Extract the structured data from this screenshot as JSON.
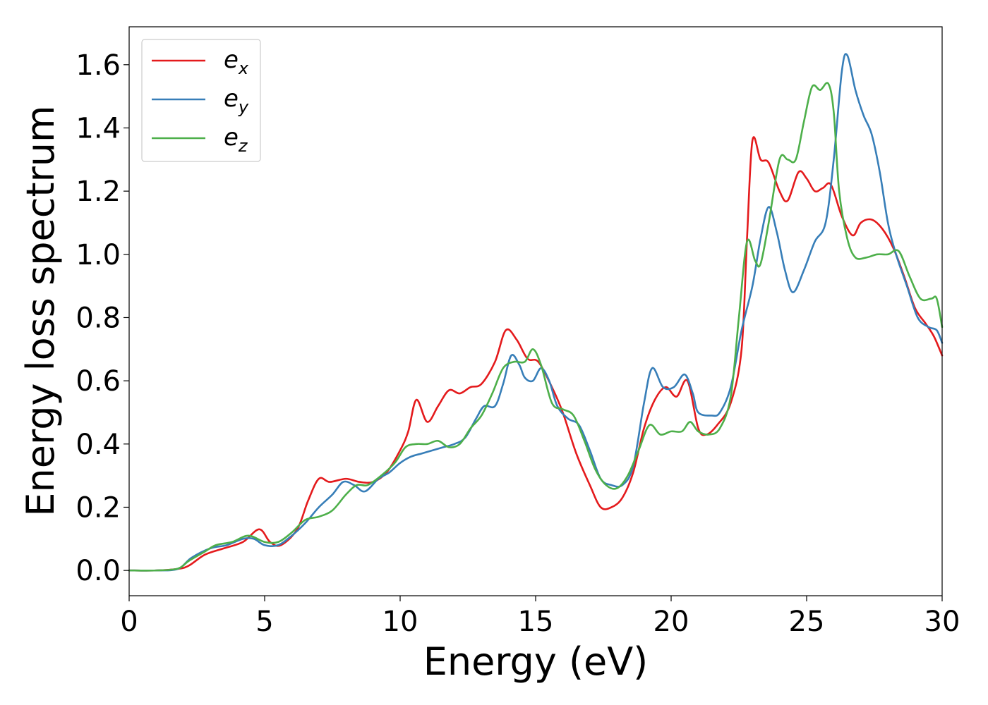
{
  "chart_data": {
    "type": "line",
    "title": "",
    "xlabel": "Energy (eV)",
    "ylabel": "Energy loss spectrum",
    "xlim": [
      0,
      30
    ],
    "ylim": [
      -0.08,
      1.72
    ],
    "xticks": [
      0,
      5,
      10,
      15,
      20,
      25,
      30
    ],
    "xtick_labels": [
      "0",
      "5",
      "10",
      "15",
      "20",
      "25",
      "30"
    ],
    "yticks": [
      0.0,
      0.2,
      0.4,
      0.6,
      0.8,
      1.0,
      1.2,
      1.4,
      1.6
    ],
    "ytick_labels": [
      "0.0",
      "0.2",
      "0.4",
      "0.6",
      "0.8",
      "1.0",
      "1.2",
      "1.4",
      "1.6"
    ],
    "grid": false,
    "legend_position": "top-left",
    "series": [
      {
        "name": "e_x",
        "legend_base": "e",
        "legend_sub": "x",
        "color": "#e41a1c",
        "points": [
          [
            0,
            0
          ],
          [
            1,
            0
          ],
          [
            1.8,
            0.005
          ],
          [
            2.2,
            0.015
          ],
          [
            2.8,
            0.05
          ],
          [
            3.5,
            0.07
          ],
          [
            4.2,
            0.09
          ],
          [
            4.8,
            0.13
          ],
          [
            5.2,
            0.09
          ],
          [
            5.6,
            0.08
          ],
          [
            6.2,
            0.13
          ],
          [
            6.6,
            0.22
          ],
          [
            7.0,
            0.29
          ],
          [
            7.4,
            0.28
          ],
          [
            8.0,
            0.29
          ],
          [
            8.5,
            0.28
          ],
          [
            9.0,
            0.28
          ],
          [
            9.5,
            0.31
          ],
          [
            10.0,
            0.38
          ],
          [
            10.3,
            0.44
          ],
          [
            10.6,
            0.54
          ],
          [
            11.0,
            0.47
          ],
          [
            11.4,
            0.52
          ],
          [
            11.8,
            0.57
          ],
          [
            12.2,
            0.56
          ],
          [
            12.6,
            0.58
          ],
          [
            13.0,
            0.59
          ],
          [
            13.5,
            0.66
          ],
          [
            13.9,
            0.76
          ],
          [
            14.3,
            0.73
          ],
          [
            14.7,
            0.67
          ],
          [
            15.1,
            0.66
          ],
          [
            15.6,
            0.58
          ],
          [
            16.0,
            0.5
          ],
          [
            16.5,
            0.37
          ],
          [
            17.0,
            0.27
          ],
          [
            17.4,
            0.2
          ],
          [
            17.8,
            0.2
          ],
          [
            18.2,
            0.23
          ],
          [
            18.6,
            0.31
          ],
          [
            19.0,
            0.45
          ],
          [
            19.4,
            0.54
          ],
          [
            19.8,
            0.58
          ],
          [
            20.2,
            0.55
          ],
          [
            20.6,
            0.6
          ],
          [
            21.0,
            0.45
          ],
          [
            21.3,
            0.43
          ],
          [
            21.7,
            0.46
          ],
          [
            22.2,
            0.53
          ],
          [
            22.6,
            0.7
          ],
          [
            22.8,
            1.05
          ],
          [
            23.0,
            1.36
          ],
          [
            23.3,
            1.3
          ],
          [
            23.6,
            1.29
          ],
          [
            24.0,
            1.2
          ],
          [
            24.3,
            1.17
          ],
          [
            24.7,
            1.26
          ],
          [
            25.0,
            1.24
          ],
          [
            25.3,
            1.2
          ],
          [
            25.6,
            1.21
          ],
          [
            25.9,
            1.22
          ],
          [
            26.3,
            1.12
          ],
          [
            26.7,
            1.06
          ],
          [
            27.0,
            1.1
          ],
          [
            27.4,
            1.11
          ],
          [
            27.8,
            1.08
          ],
          [
            28.2,
            1.02
          ],
          [
            28.6,
            0.93
          ],
          [
            29.0,
            0.83
          ],
          [
            29.4,
            0.78
          ],
          [
            29.7,
            0.74
          ],
          [
            30.0,
            0.68
          ]
        ]
      },
      {
        "name": "e_y",
        "legend_base": "e",
        "legend_sub": "y",
        "color": "#377eb8",
        "points": [
          [
            0,
            0
          ],
          [
            1,
            0
          ],
          [
            1.8,
            0.005
          ],
          [
            2.3,
            0.04
          ],
          [
            3.0,
            0.07
          ],
          [
            3.6,
            0.08
          ],
          [
            4.2,
            0.1
          ],
          [
            4.6,
            0.1
          ],
          [
            5.0,
            0.08
          ],
          [
            5.5,
            0.08
          ],
          [
            6.0,
            0.11
          ],
          [
            6.5,
            0.15
          ],
          [
            7.0,
            0.2
          ],
          [
            7.5,
            0.24
          ],
          [
            7.9,
            0.28
          ],
          [
            8.3,
            0.27
          ],
          [
            8.7,
            0.25
          ],
          [
            9.2,
            0.29
          ],
          [
            9.6,
            0.31
          ],
          [
            10.0,
            0.34
          ],
          [
            10.4,
            0.36
          ],
          [
            10.8,
            0.37
          ],
          [
            11.2,
            0.38
          ],
          [
            11.6,
            0.39
          ],
          [
            12.0,
            0.4
          ],
          [
            12.4,
            0.42
          ],
          [
            12.8,
            0.48
          ],
          [
            13.1,
            0.52
          ],
          [
            13.5,
            0.52
          ],
          [
            13.8,
            0.59
          ],
          [
            14.1,
            0.68
          ],
          [
            14.4,
            0.65
          ],
          [
            14.6,
            0.61
          ],
          [
            14.9,
            0.6
          ],
          [
            15.2,
            0.64
          ],
          [
            15.5,
            0.6
          ],
          [
            15.8,
            0.52
          ],
          [
            16.2,
            0.48
          ],
          [
            16.6,
            0.46
          ],
          [
            17.0,
            0.38
          ],
          [
            17.4,
            0.29
          ],
          [
            17.8,
            0.27
          ],
          [
            18.2,
            0.27
          ],
          [
            18.6,
            0.33
          ],
          [
            19.0,
            0.53
          ],
          [
            19.3,
            0.64
          ],
          [
            19.7,
            0.58
          ],
          [
            20.1,
            0.58
          ],
          [
            20.5,
            0.62
          ],
          [
            20.8,
            0.56
          ],
          [
            21.0,
            0.5
          ],
          [
            21.5,
            0.49
          ],
          [
            21.8,
            0.5
          ],
          [
            22.2,
            0.58
          ],
          [
            22.6,
            0.76
          ],
          [
            23.0,
            0.9
          ],
          [
            23.3,
            1.05
          ],
          [
            23.6,
            1.15
          ],
          [
            23.9,
            1.07
          ],
          [
            24.2,
            0.95
          ],
          [
            24.5,
            0.88
          ],
          [
            24.9,
            0.95
          ],
          [
            25.3,
            1.04
          ],
          [
            25.7,
            1.1
          ],
          [
            26.0,
            1.3
          ],
          [
            26.3,
            1.58
          ],
          [
            26.5,
            1.63
          ],
          [
            26.8,
            1.52
          ],
          [
            27.1,
            1.44
          ],
          [
            27.4,
            1.38
          ],
          [
            27.7,
            1.26
          ],
          [
            28.0,
            1.1
          ],
          [
            28.3,
            1.0
          ],
          [
            28.7,
            0.9
          ],
          [
            29.1,
            0.8
          ],
          [
            29.5,
            0.77
          ],
          [
            29.8,
            0.76
          ],
          [
            30.0,
            0.72
          ]
        ]
      },
      {
        "name": "e_z",
        "legend_base": "e",
        "legend_sub": "z",
        "color": "#4daf4a",
        "points": [
          [
            0,
            0
          ],
          [
            1,
            0
          ],
          [
            1.8,
            0.006
          ],
          [
            2.2,
            0.03
          ],
          [
            2.8,
            0.06
          ],
          [
            3.2,
            0.08
          ],
          [
            3.8,
            0.09
          ],
          [
            4.4,
            0.11
          ],
          [
            5.0,
            0.09
          ],
          [
            5.5,
            0.09
          ],
          [
            6.0,
            0.12
          ],
          [
            6.5,
            0.16
          ],
          [
            7.0,
            0.17
          ],
          [
            7.5,
            0.19
          ],
          [
            8.0,
            0.24
          ],
          [
            8.4,
            0.27
          ],
          [
            8.8,
            0.27
          ],
          [
            9.3,
            0.3
          ],
          [
            9.8,
            0.34
          ],
          [
            10.2,
            0.39
          ],
          [
            10.6,
            0.4
          ],
          [
            11.0,
            0.4
          ],
          [
            11.4,
            0.41
          ],
          [
            11.8,
            0.39
          ],
          [
            12.2,
            0.4
          ],
          [
            12.6,
            0.45
          ],
          [
            13.0,
            0.49
          ],
          [
            13.4,
            0.56
          ],
          [
            13.8,
            0.64
          ],
          [
            14.2,
            0.66
          ],
          [
            14.6,
            0.66
          ],
          [
            14.9,
            0.7
          ],
          [
            15.2,
            0.65
          ],
          [
            15.6,
            0.53
          ],
          [
            16.0,
            0.51
          ],
          [
            16.4,
            0.49
          ],
          [
            16.8,
            0.41
          ],
          [
            17.2,
            0.32
          ],
          [
            17.6,
            0.27
          ],
          [
            18.0,
            0.26
          ],
          [
            18.4,
            0.3
          ],
          [
            18.8,
            0.38
          ],
          [
            19.2,
            0.46
          ],
          [
            19.6,
            0.43
          ],
          [
            20.0,
            0.44
          ],
          [
            20.4,
            0.44
          ],
          [
            20.7,
            0.47
          ],
          [
            21.0,
            0.44
          ],
          [
            21.4,
            0.43
          ],
          [
            21.8,
            0.45
          ],
          [
            22.2,
            0.55
          ],
          [
            22.5,
            0.8
          ],
          [
            22.8,
            1.04
          ],
          [
            23.1,
            0.98
          ],
          [
            23.3,
            0.97
          ],
          [
            23.6,
            1.1
          ],
          [
            24.0,
            1.3
          ],
          [
            24.3,
            1.3
          ],
          [
            24.6,
            1.3
          ],
          [
            24.9,
            1.42
          ],
          [
            25.2,
            1.53
          ],
          [
            25.5,
            1.52
          ],
          [
            25.8,
            1.54
          ],
          [
            26.0,
            1.45
          ],
          [
            26.2,
            1.2
          ],
          [
            26.5,
            1.05
          ],
          [
            26.8,
            0.99
          ],
          [
            27.2,
            0.99
          ],
          [
            27.6,
            1.0
          ],
          [
            28.0,
            1.0
          ],
          [
            28.4,
            1.01
          ],
          [
            28.8,
            0.93
          ],
          [
            29.2,
            0.86
          ],
          [
            29.6,
            0.86
          ],
          [
            29.8,
            0.86
          ],
          [
            30.0,
            0.77
          ]
        ]
      }
    ]
  }
}
